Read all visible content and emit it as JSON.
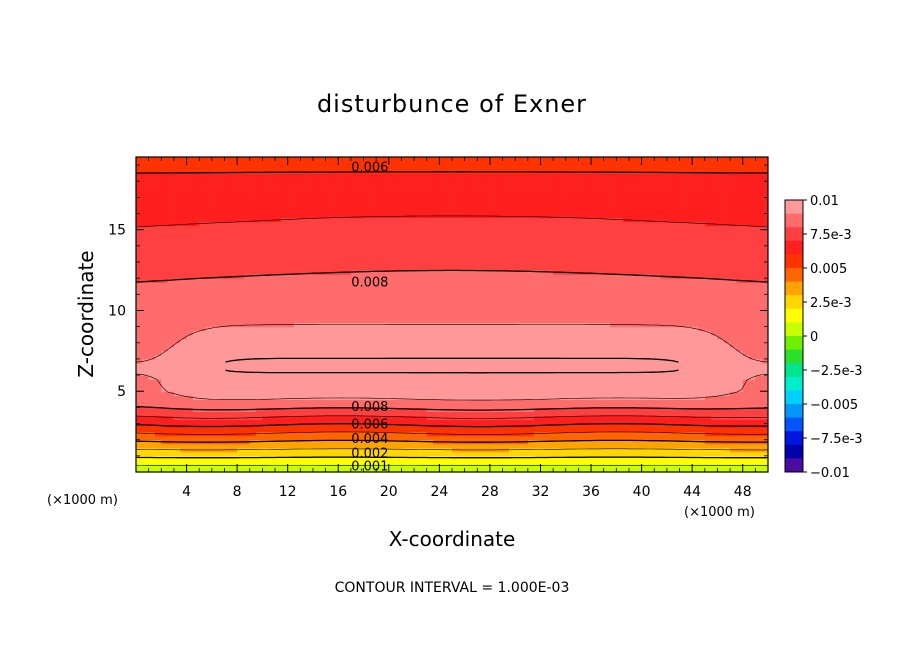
{
  "chart_data": {
    "type": "heatmap",
    "title": "disturbunce of Exner",
    "xlabel": "X-coordinate",
    "ylabel": "Z-coordinate",
    "x_unit": "(×1000 m)",
    "x_unit_right": "(×1000 m)",
    "xlim": [
      0,
      50
    ],
    "ylim": [
      0,
      19.5
    ],
    "x_ticks": [
      4,
      8,
      12,
      16,
      20,
      24,
      28,
      32,
      36,
      40,
      44,
      48
    ],
    "y_ticks": [
      5,
      10,
      15
    ],
    "footer": "CONTOUR INTERVAL = 1.000E-03",
    "colorbar": {
      "range": [
        -0.01,
        0.01
      ],
      "tick_values": [
        0.01,
        0.0075,
        0.005,
        0.0025,
        0,
        -0.0025,
        -0.005,
        -0.0075,
        -0.01
      ],
      "tick_labels": [
        "0.01",
        "7.5e-3",
        "0.005",
        "2.5e-3",
        "0",
        "−2.5e-3",
        "−0.005",
        "−7.5e-3",
        "−0.01"
      ],
      "colors_high_to_low": [
        "#ff9999",
        "#ff6c6c",
        "#ff4040",
        "#ff1f1f",
        "#ff3300",
        "#ff6600",
        "#ffa300",
        "#ffd700",
        "#ffff00",
        "#c8ff00",
        "#6ef000",
        "#2cdf2c",
        "#00e48c",
        "#00eecd",
        "#00d0ff",
        "#0097ff",
        "#0055ff",
        "#0016e0",
        "#0000a8",
        "#4b0aa0"
      ]
    },
    "profile": {
      "z": [
        0.0,
        0.3,
        0.6,
        0.9,
        1.2,
        1.5,
        1.8,
        2.1,
        2.4,
        2.7,
        3.0,
        3.3,
        3.6,
        3.9,
        4.2,
        4.5,
        5.0,
        5.7,
        6.3,
        6.8,
        7.5,
        8.5,
        9.5,
        10.5,
        11.5,
        12.5,
        13.5,
        14.5,
        15.5,
        16.5,
        17.5,
        18.5,
        19.5
      ],
      "value": [
        0.0003,
        0.0008,
        0.0014,
        0.002,
        0.0026,
        0.0032,
        0.0038,
        0.0044,
        0.005,
        0.0056,
        0.0062,
        0.0068,
        0.0074,
        0.008,
        0.0085,
        0.009,
        0.0094,
        0.0097,
        0.0101,
        0.0101,
        0.0098,
        0.0093,
        0.0088,
        0.0084,
        0.0081,
        0.0078,
        0.0075,
        0.0072,
        0.0069,
        0.0067,
        0.0064,
        0.006,
        0.0057
      ]
    },
    "contour_labels": [
      {
        "text": "0.006",
        "x": 18.5,
        "z": 18.9
      },
      {
        "text": "0.008",
        "x": 18.5,
        "z": 11.8
      },
      {
        "text": "0.008",
        "x": 18.5,
        "z": 4.1
      },
      {
        "text": "0.006",
        "x": 18.5,
        "z": 3.0
      },
      {
        "text": "0.004",
        "x": 18.5,
        "z": 2.1
      },
      {
        "text": "0.002",
        "x": 18.5,
        "z": 1.2
      },
      {
        "text": "0.001",
        "x": 18.5,
        "z": 0.4
      }
    ],
    "grid": false,
    "legend": "right colorbar"
  }
}
